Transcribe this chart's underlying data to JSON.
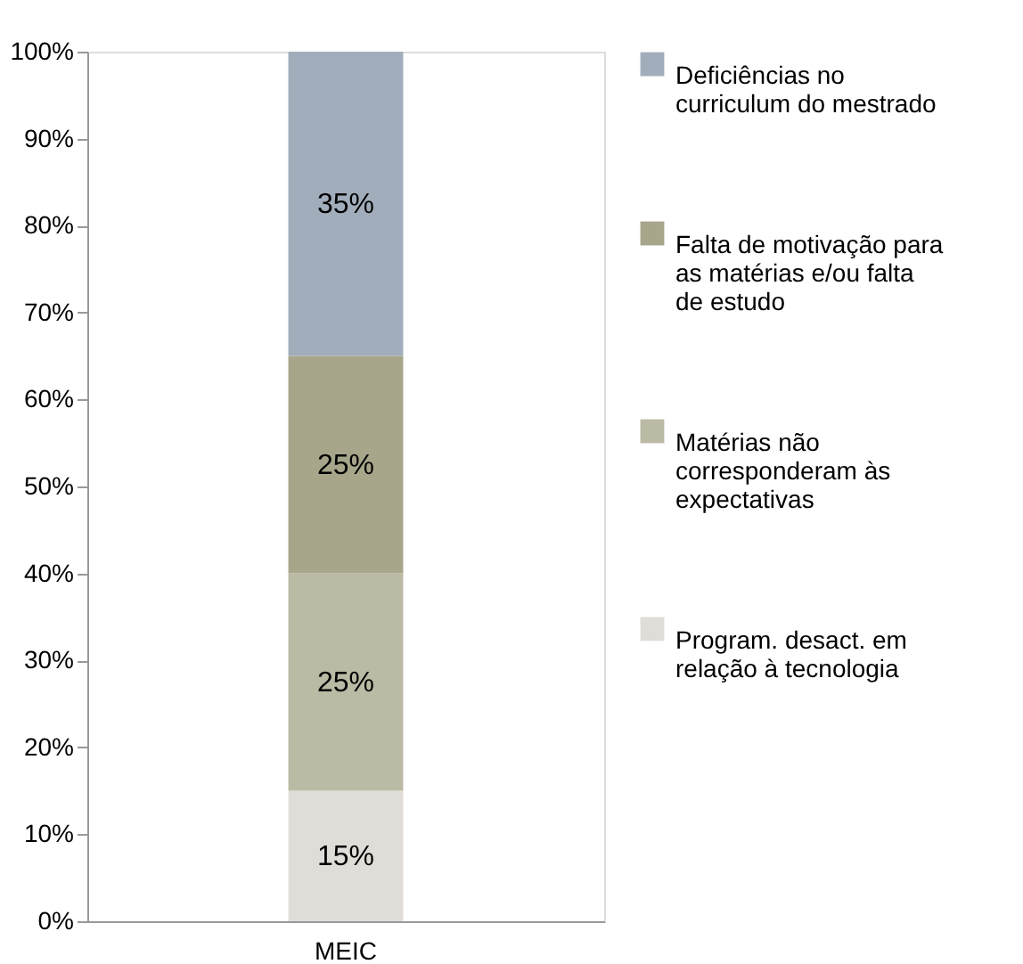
{
  "chart_data": {
    "type": "bar",
    "stacked": true,
    "categories": [
      "MEIC"
    ],
    "series": [
      {
        "name": "Program. desact. em relação à tecnologia",
        "color": "#e0ddd8",
        "values": [
          15
        ],
        "value_labels": [
          "15%"
        ]
      },
      {
        "name": "Matérias não corresponderam às expectativas",
        "color": "#bbbaa5",
        "values": [
          25
        ],
        "value_labels": [
          "25%"
        ]
      },
      {
        "name": "Falta de motivação para as matérias e/ou falta de estudo",
        "color": "#a7a68b",
        "values": [
          25
        ],
        "value_labels": [
          "25%"
        ]
      },
      {
        "name": "Deficiências no curriculum do mestrado",
        "color": "#a2adbb",
        "values": [
          35
        ],
        "value_labels": [
          "35%"
        ]
      }
    ],
    "ylim": [
      0,
      100
    ],
    "yticks": [
      {
        "value": 0,
        "label": "0%"
      },
      {
        "value": 10,
        "label": "10%"
      },
      {
        "value": 20,
        "label": "20%"
      },
      {
        "value": 30,
        "label": "30%"
      },
      {
        "value": 40,
        "label": "40%"
      },
      {
        "value": 50,
        "label": "50%"
      },
      {
        "value": 60,
        "label": "60%"
      },
      {
        "value": 70,
        "label": "70%"
      },
      {
        "value": 80,
        "label": "80%"
      },
      {
        "value": 90,
        "label": "90%"
      },
      {
        "value": 100,
        "label": "100%"
      }
    ],
    "grid": false,
    "legend": "right"
  }
}
